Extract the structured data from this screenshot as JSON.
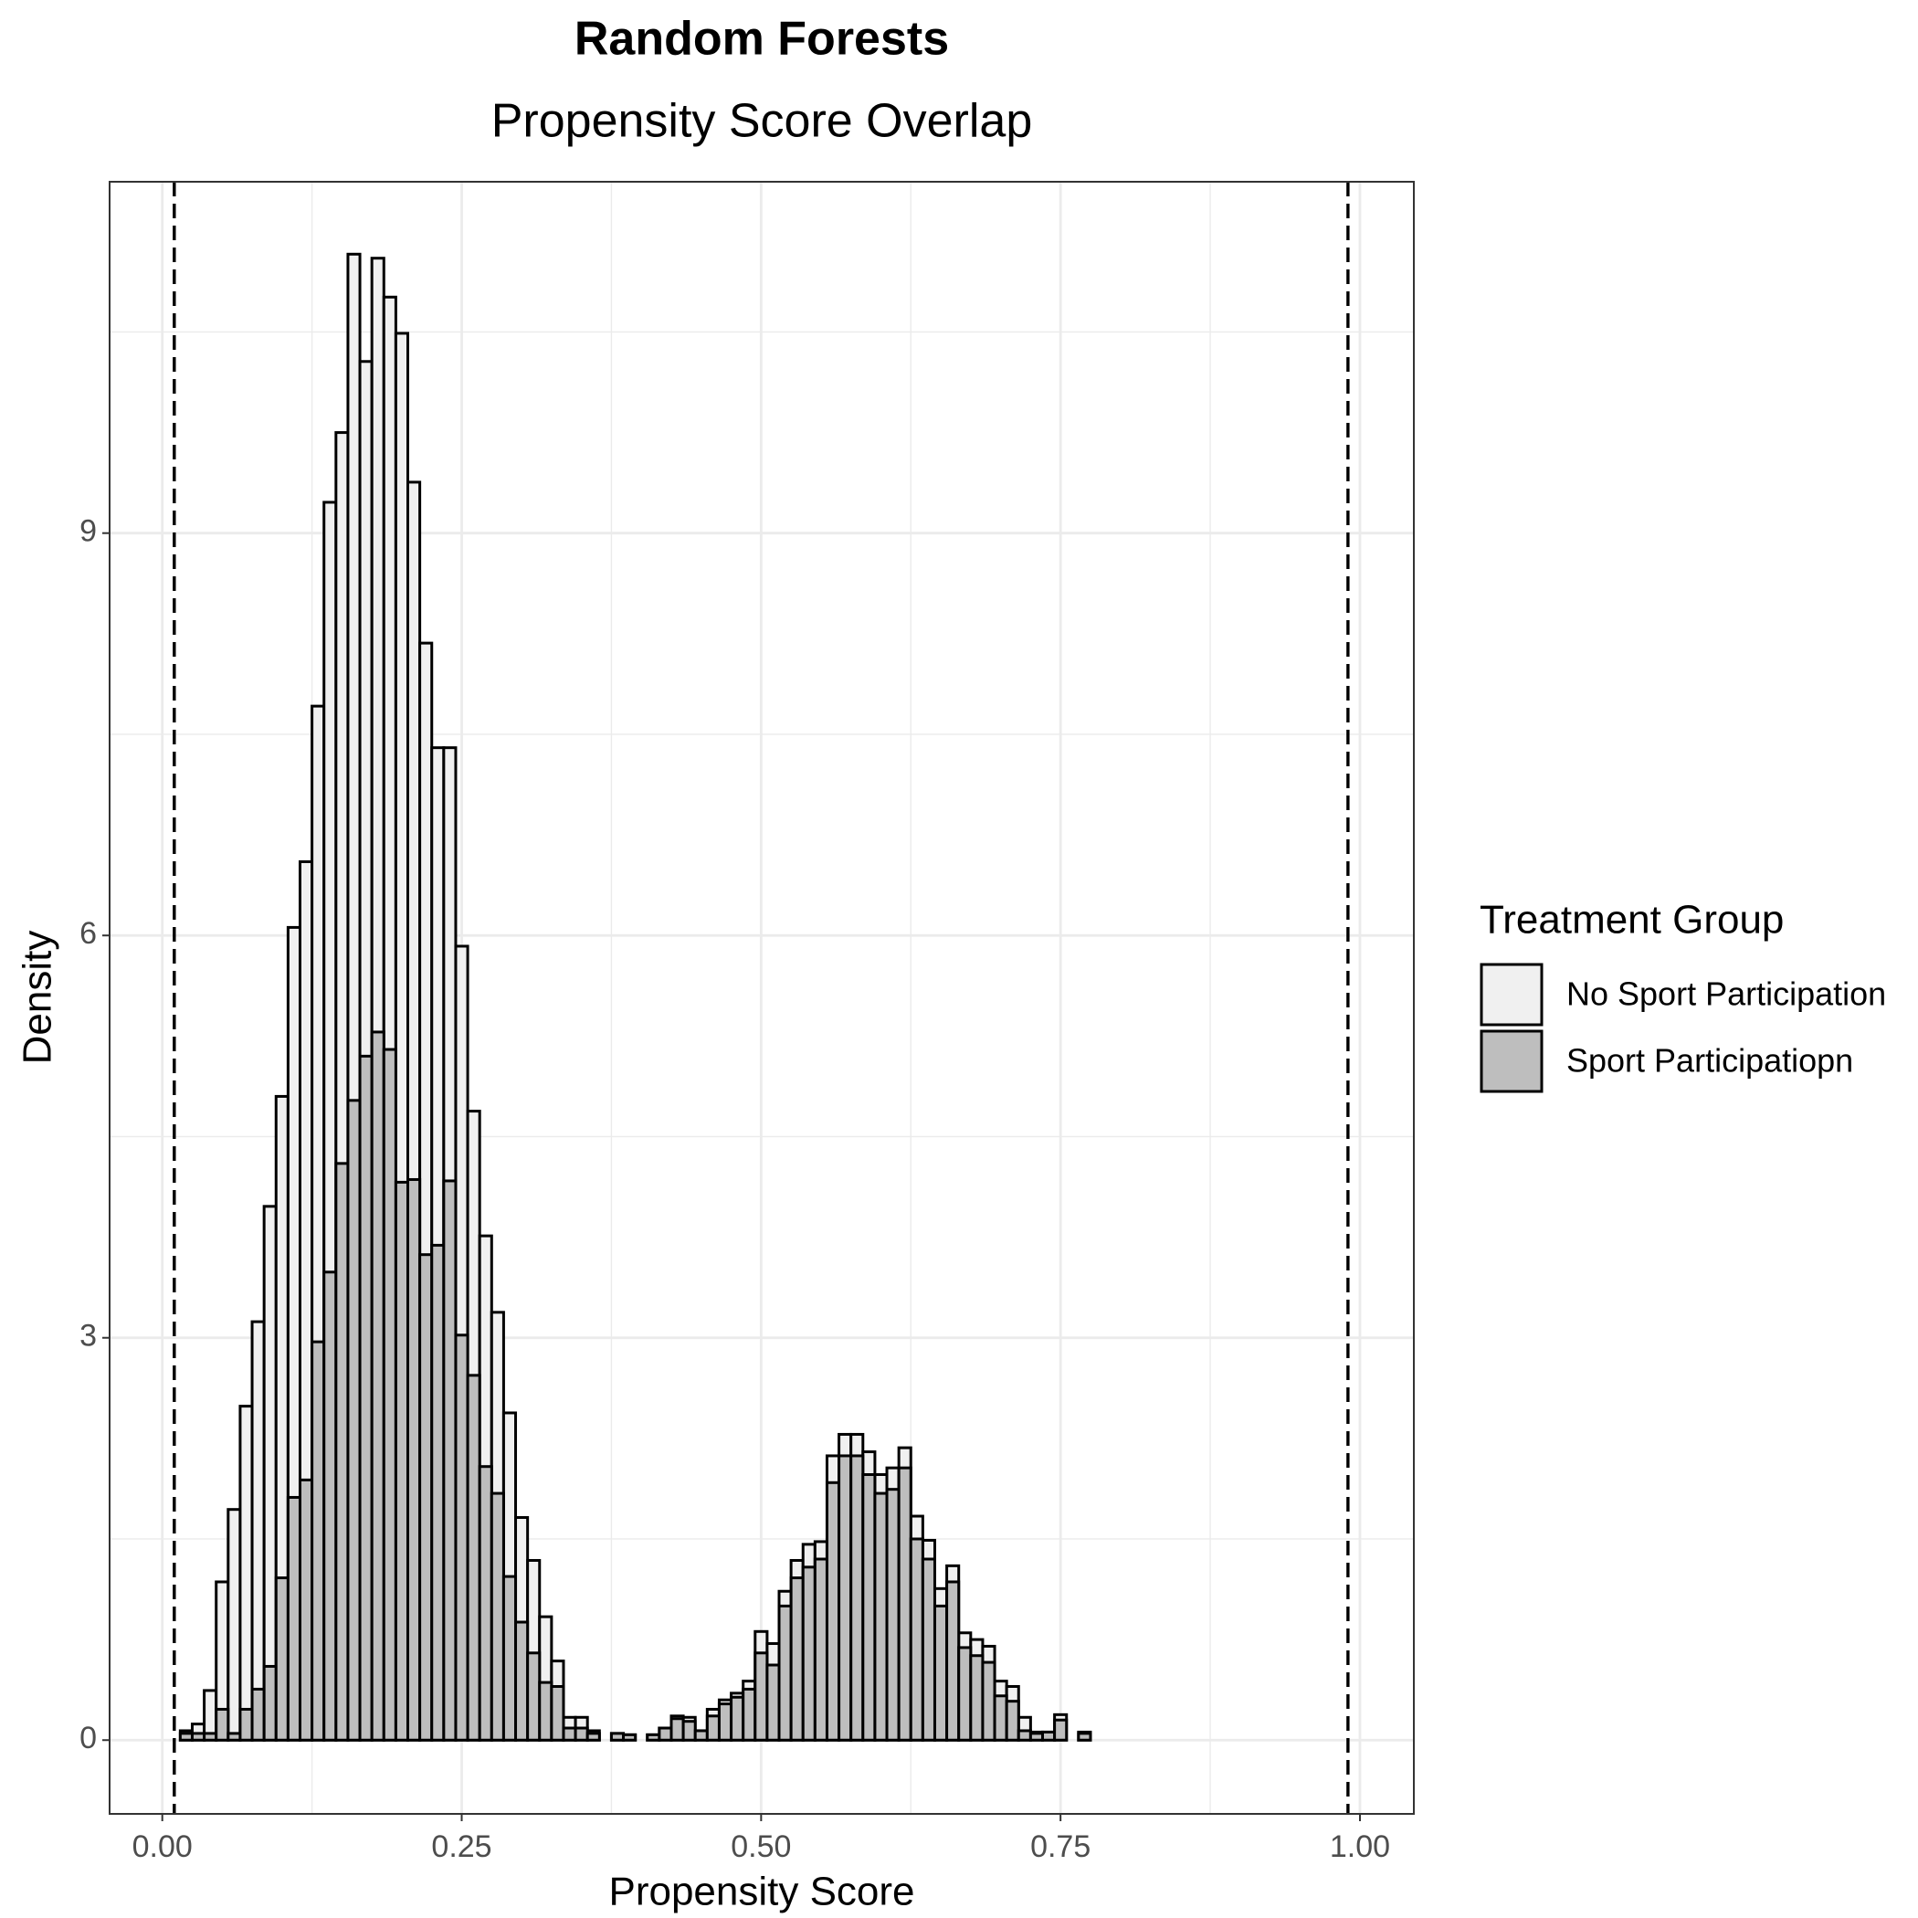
{
  "chart_data": {
    "type": "histogram",
    "title": "Random Forests",
    "subtitle": "Propensity Score Overlap",
    "x_label": "Propensity Score",
    "y_label": "Density",
    "legend_title": "Treatment Group",
    "legend_position": "right",
    "grid": true,
    "bins": [
      0.005,
      0.015,
      0.025,
      0.035,
      0.045,
      0.055,
      0.065,
      0.075,
      0.085,
      0.095,
      0.105,
      0.115,
      0.125,
      0.135,
      0.145,
      0.155,
      0.165,
      0.175,
      0.185,
      0.195,
      0.205,
      0.215,
      0.225,
      0.235,
      0.245,
      0.255,
      0.265,
      0.275,
      0.285,
      0.295,
      0.305,
      0.315,
      0.325,
      0.335,
      0.345,
      0.355,
      0.365,
      0.375,
      0.385,
      0.395,
      0.405,
      0.415,
      0.425,
      0.435,
      0.445,
      0.455,
      0.465,
      0.475,
      0.485,
      0.495,
      0.505,
      0.515,
      0.525,
      0.535,
      0.545,
      0.555,
      0.565,
      0.575,
      0.585,
      0.595,
      0.605,
      0.615,
      0.625,
      0.635,
      0.645,
      0.655,
      0.665,
      0.675,
      0.685,
      0.695,
      0.705,
      0.715,
      0.725,
      0.735,
      0.745,
      0.755,
      0.765,
      0.775,
      0.785,
      0.795,
      0.805,
      0.815,
      0.825,
      0.835,
      0.845,
      0.855,
      0.865,
      0.875,
      0.885,
      0.895,
      0.905,
      0.915,
      0.925,
      0.935,
      0.945,
      0.955,
      0.965,
      0.975,
      0.985,
      0.995
    ],
    "series": [
      {
        "name": "No Sport Participation",
        "color": "#f0f0f0",
        "values": [
          0,
          0.07,
          0.12,
          0.37,
          1.18,
          1.72,
          2.49,
          3.12,
          3.98,
          4.8,
          6.06,
          6.55,
          7.71,
          9.23,
          9.75,
          11.08,
          10.28,
          11.05,
          10.76,
          10.49,
          9.38,
          8.18,
          7.4,
          7.4,
          5.92,
          4.69,
          3.76,
          3.19,
          2.44,
          1.66,
          1.34,
          0.92,
          0.59,
          0.17,
          0.17,
          0.07,
          0,
          0.05,
          0.04,
          0,
          0.04,
          0.09,
          0.18,
          0.17,
          0.07,
          0.23,
          0.3,
          0.35,
          0.44,
          0.81,
          0.72,
          1.11,
          1.34,
          1.46,
          1.48,
          2.12,
          2.28,
          2.28,
          2.15,
          1.98,
          2.03,
          2.18,
          1.67,
          1.49,
          1.13,
          1.3,
          0.8,
          0.75,
          0.7,
          0.44,
          0.4,
          0.17,
          0.06,
          0.06,
          0.19,
          0,
          0.06,
          0,
          0,
          0,
          0,
          0,
          0,
          0,
          0,
          0,
          0,
          0,
          0,
          0,
          0,
          0,
          0,
          0,
          0,
          0,
          0,
          0,
          0
        ]
      },
      {
        "name": "Sport Participatiopn",
        "color": "#bebebe",
        "values": [
          0,
          0.05,
          0.05,
          0.05,
          0.23,
          0.05,
          0.23,
          0.38,
          0.55,
          1.21,
          1.81,
          1.94,
          2.97,
          3.49,
          4.3,
          4.77,
          5.1,
          5.28,
          5.15,
          4.16,
          4.18,
          3.62,
          3.69,
          4.17,
          3.02,
          2.72,
          2.04,
          1.84,
          1.22,
          0.88,
          0.65,
          0.43,
          0.4,
          0.09,
          0.09,
          0.05,
          0,
          0.05,
          0.04,
          0,
          0.04,
          0.09,
          0.16,
          0.14,
          0.07,
          0.18,
          0.27,
          0.32,
          0.38,
          0.65,
          0.56,
          1.0,
          1.21,
          1.29,
          1.35,
          1.92,
          2.12,
          2.12,
          1.98,
          1.84,
          1.87,
          2.03,
          1.5,
          1.35,
          1.0,
          1.18,
          0.69,
          0.63,
          0.58,
          0.33,
          0.29,
          0.07,
          0.05,
          0.06,
          0.15,
          0,
          0.05,
          0,
          0,
          0,
          0,
          0,
          0,
          0,
          0,
          0,
          0,
          0,
          0,
          0,
          0,
          0,
          0,
          0,
          0,
          0,
          0,
          0,
          0
        ]
      }
    ],
    "vlines": [
      0.01,
      0.99
    ],
    "xlim": [
      -0.044,
      1.045
    ],
    "ylim": [
      -0.55,
      11.62
    ],
    "xticks": [
      {
        "value": 0,
        "label": "0.00"
      },
      {
        "value": 0.25,
        "label": "0.25"
      },
      {
        "value": 0.5,
        "label": "0.50"
      },
      {
        "value": 0.75,
        "label": "0.75"
      },
      {
        "value": 1,
        "label": "1.00"
      }
    ],
    "yticks": [
      0,
      3,
      6,
      9
    ],
    "x_minor_grid": [
      0.125,
      0.375,
      0.625,
      0.875
    ],
    "y_minor_grid": [
      1.5,
      4.5,
      7.5,
      10.5
    ]
  }
}
